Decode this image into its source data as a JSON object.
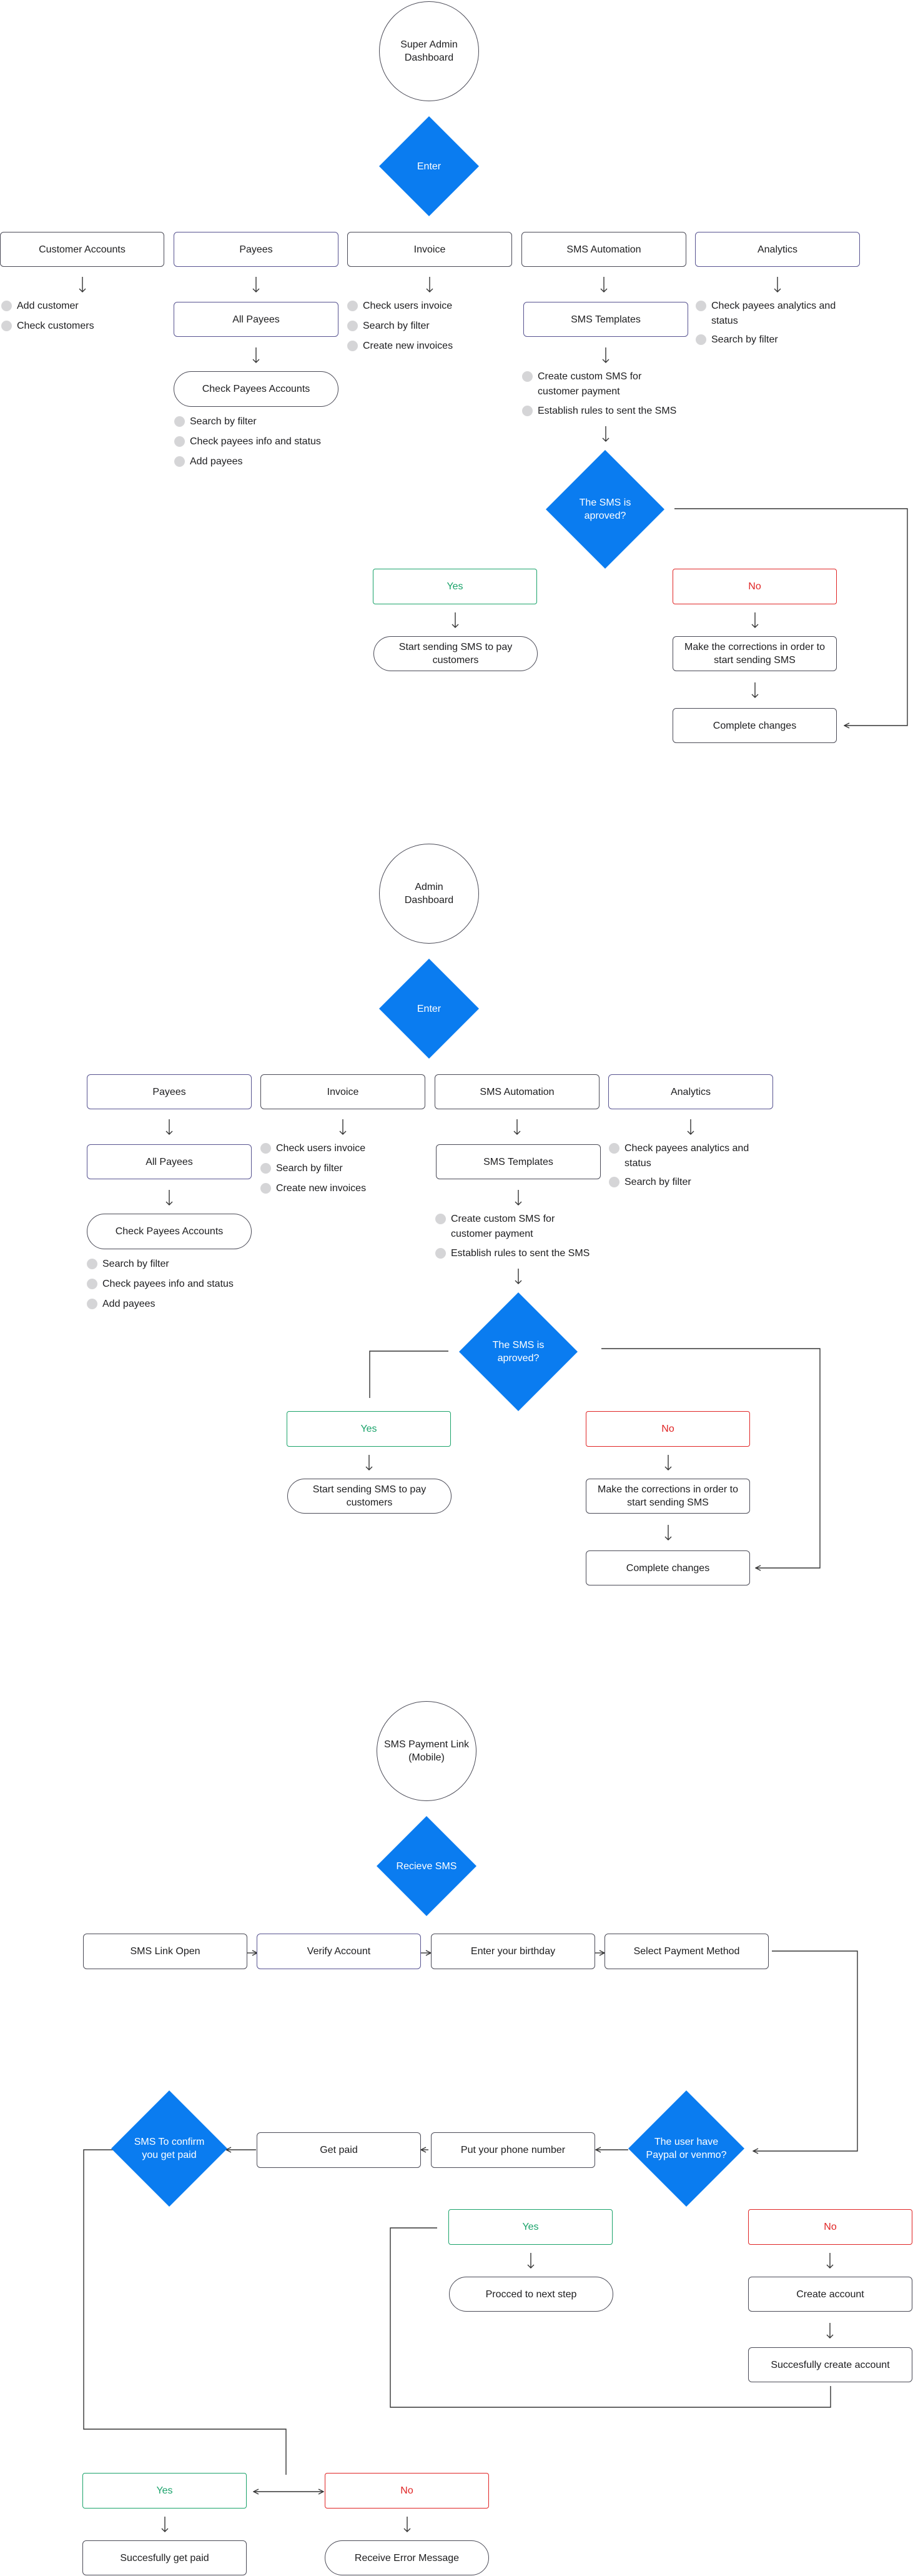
{
  "super_admin": {
    "title": "Super Admin\nDashboard",
    "enter": "Enter",
    "columns": [
      "Customer Accounts",
      "Payees",
      "Invoice",
      "SMS Automation",
      "Analytics"
    ],
    "customer_items": [
      "Add customer",
      "Check customers"
    ],
    "all_payees": "All Payees",
    "check_payees_accounts": "Check Payees Accounts",
    "payees_items": [
      "Search by filter",
      "Check payees info and status",
      "Add payees"
    ],
    "invoice_items": [
      "Check users invoice",
      "Search by filter",
      "Create new invoices"
    ],
    "sms_templates": "SMS Templates",
    "sms_items": [
      "Create custom SMS for\ncustomer payment",
      "Establish rules to sent the SMS"
    ],
    "analytics_items": [
      "Check payees analytics and\nstatus",
      "Search by filter"
    ],
    "decision": "The SMS is aproved?",
    "yes": "Yes",
    "no": "No",
    "start_sending": "Start sending SMS to pay\ncustomers",
    "make_corrections": "Make the corrections in order to\nstart sending SMS",
    "complete_changes": "Complete changes"
  },
  "admin": {
    "title": "Admin\nDashboard",
    "enter": "Enter",
    "columns": [
      "Payees",
      "Invoice",
      "SMS Automation",
      "Analytics"
    ],
    "all_payees": "All Payees",
    "check_payees_accounts": "Check Payees Accounts",
    "payees_items": [
      "Search by filter",
      "Check payees info and status",
      "Add payees"
    ],
    "invoice_items": [
      "Check users invoice",
      "Search by filter",
      "Create new invoices"
    ],
    "sms_templates": "SMS Templates",
    "sms_items": [
      "Create custom SMS for\ncustomer payment",
      "Establish rules to sent the SMS"
    ],
    "analytics_items": [
      "Check payees analytics and\nstatus",
      "Search by filter"
    ],
    "decision": "The SMS is aproved?",
    "yes": "Yes",
    "no": "No",
    "start_sending": "Start sending SMS to pay\ncustomers",
    "make_corrections": "Make the corrections in order to\nstart sending SMS",
    "complete_changes": "Complete changes"
  },
  "mobile": {
    "title": "SMS Payment Link\n(Mobile)",
    "receive": "Recieve SMS",
    "steps": [
      "SMS Link Open",
      "Verify Account",
      "Enter your birthday",
      "Select Payment Method"
    ],
    "paypal_decision": "The user have\nPaypal or venmo?",
    "phone_number": "Put your phone number",
    "get_paid": "Get paid",
    "confirm_decision": "SMS To confirm\nyou get paid",
    "yes": "Yes",
    "no": "No",
    "proceed": "Procced to next step",
    "create_account": "Create account",
    "success_create": "Succesfully create account",
    "yes2": "Yes",
    "no2": "No",
    "success_paid": "Succesfully get paid",
    "error_message": "Receive Error Message"
  }
}
